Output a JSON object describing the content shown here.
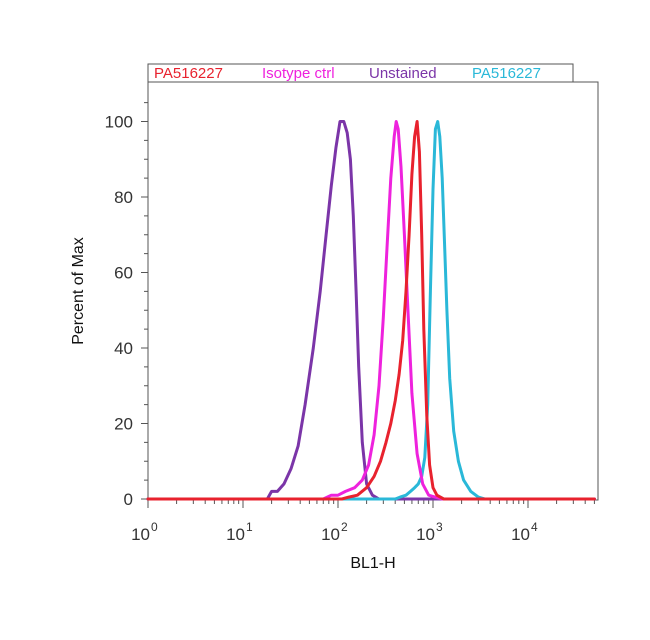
{
  "chart_data": {
    "type": "line",
    "title": "",
    "xlabel": "BL1-H",
    "ylabel": "Percent of Max",
    "x_scale": "log",
    "xlim": [
      1,
      50000
    ],
    "ylim": [
      0,
      110
    ],
    "x_ticks": [
      {
        "value": 1,
        "base": "10",
        "exp": "0"
      },
      {
        "value": 10,
        "base": "10",
        "exp": "1"
      },
      {
        "value": 100,
        "base": "10",
        "exp": "2"
      },
      {
        "value": 1000,
        "base": "10",
        "exp": "3"
      },
      {
        "value": 10000,
        "base": "10",
        "exp": "4"
      }
    ],
    "y_ticks": [
      0,
      20,
      40,
      60,
      80,
      100
    ],
    "grid": false,
    "legend_position": "top",
    "legend": [
      {
        "label": "PA516227",
        "color": "#e8222e"
      },
      {
        "label": "Isotype ctrl",
        "color": "#ee22dd"
      },
      {
        "label": "Unstained",
        "color": "#7b35a8"
      },
      {
        "label": "PA516227",
        "color": "#2ab8d8"
      }
    ],
    "series": [
      {
        "color": "#7b35a8",
        "x": [
          1,
          18,
          20,
          23,
          27,
          32,
          38,
          45,
          55,
          65,
          75,
          85,
          95,
          105,
          115,
          125,
          135,
          145,
          155,
          165,
          180,
          200,
          230,
          270,
          50000
        ],
        "y": [
          0,
          0,
          2,
          2,
          4,
          8,
          14,
          25,
          40,
          55,
          70,
          83,
          93,
          100,
          100,
          97,
          90,
          75,
          55,
          35,
          15,
          4,
          1,
          0,
          0
        ]
      },
      {
        "color": "#2ab8d8",
        "x": [
          1,
          400,
          450,
          520,
          580,
          640,
          700,
          760,
          820,
          880,
          940,
          1000,
          1060,
          1120,
          1180,
          1250,
          1320,
          1400,
          1500,
          1650,
          1850,
          2100,
          2500,
          3000,
          3500,
          50000
        ],
        "y": [
          0,
          0,
          0.5,
          1,
          2,
          3,
          4,
          6,
          11,
          25,
          55,
          82,
          98,
          100,
          96,
          85,
          68,
          50,
          32,
          18,
          10,
          5,
          2,
          0.5,
          0,
          0
        ]
      },
      {
        "color": "#ee22dd",
        "x": [
          1,
          70,
          85,
          100,
          120,
          150,
          180,
          210,
          240,
          270,
          300,
          330,
          360,
          390,
          410,
          430,
          460,
          500,
          550,
          600,
          680,
          780,
          900,
          1050,
          1250,
          50000
        ],
        "y": [
          0,
          0,
          1,
          1,
          2,
          3,
          5,
          9,
          17,
          30,
          48,
          68,
          85,
          96,
          100,
          98,
          88,
          70,
          48,
          28,
          12,
          4,
          1,
          0.5,
          0,
          0
        ]
      },
      {
        "color": "#e8222e",
        "x": [
          1,
          110,
          130,
          160,
          200,
          240,
          280,
          320,
          360,
          400,
          440,
          480,
          520,
          560,
          600,
          640,
          680,
          720,
          760,
          800,
          860,
          920,
          1000,
          1100,
          1300,
          50000
        ],
        "y": [
          0,
          0,
          0.5,
          1,
          3,
          6,
          10,
          15,
          20,
          26,
          33,
          42,
          55,
          70,
          86,
          96,
          100,
          92,
          70,
          45,
          22,
          9,
          3,
          1,
          0,
          0
        ]
      }
    ]
  }
}
